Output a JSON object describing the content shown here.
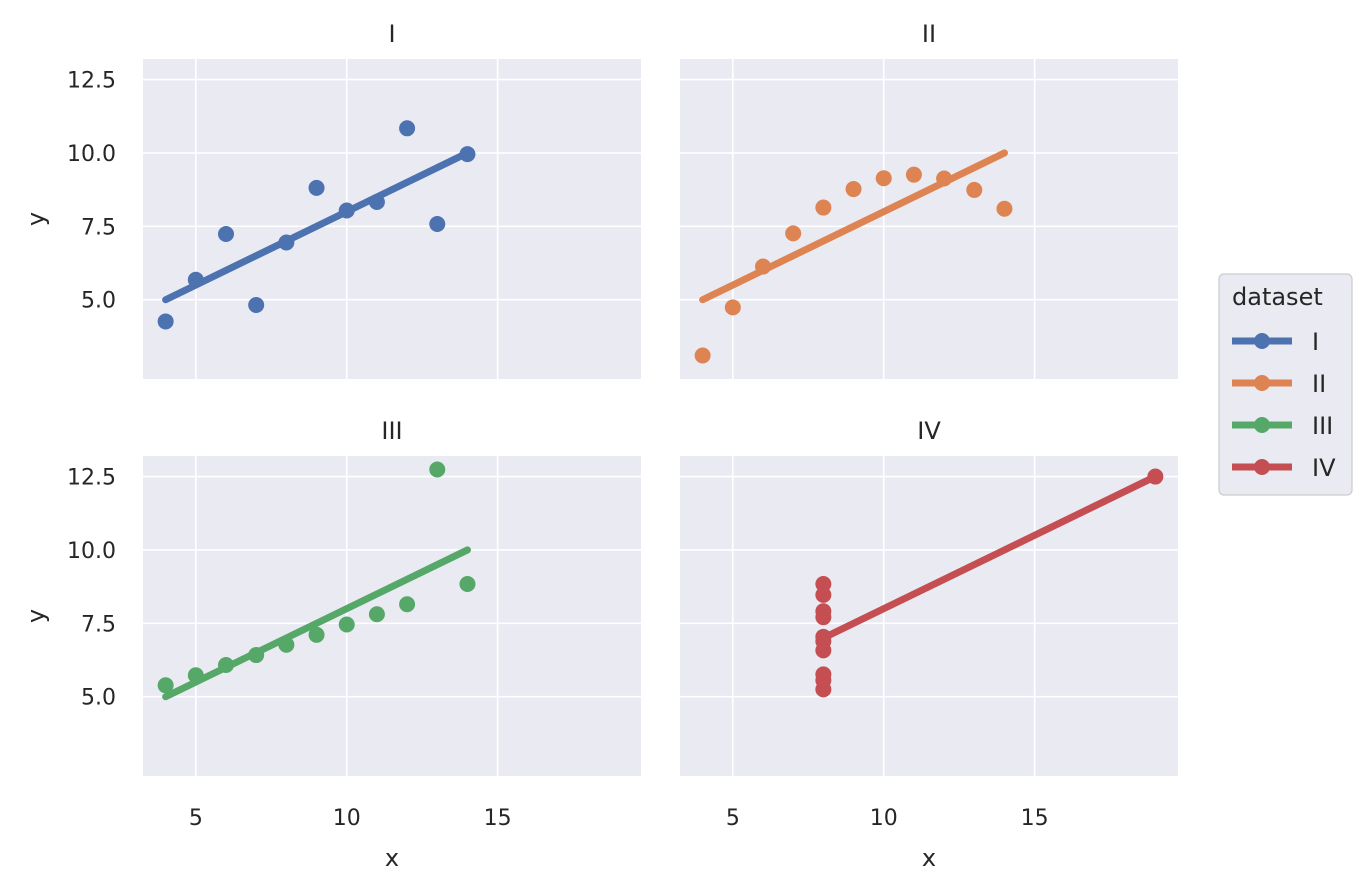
{
  "chart_data": {
    "type": "scatter",
    "layout": "facet-grid-2x2",
    "xlabel": "x",
    "ylabel": "y",
    "xlim": [
      3.25,
      19.75
    ],
    "ylim": [
      2.3,
      13.2
    ],
    "x_ticks": [
      5,
      10,
      15
    ],
    "y_ticks": [
      5.0,
      7.5,
      10.0,
      12.5
    ],
    "x_tick_labels": [
      "5",
      "10",
      "15"
    ],
    "y_tick_labels": [
      "5.0",
      "7.5",
      "10.0",
      "12.5"
    ],
    "grid": true,
    "legend": {
      "title": "dataset",
      "placement": "right",
      "entries": [
        "I",
        "II",
        "III",
        "IV"
      ]
    },
    "panels": [
      {
        "title": "I",
        "color": "#4c72b0",
        "points": [
          [
            10,
            8.04
          ],
          [
            8,
            6.95
          ],
          [
            13,
            7.58
          ],
          [
            9,
            8.81
          ],
          [
            11,
            8.33
          ],
          [
            14,
            9.96
          ],
          [
            6,
            7.24
          ],
          [
            4,
            4.26
          ],
          [
            12,
            10.84
          ],
          [
            7,
            4.82
          ],
          [
            5,
            5.68
          ]
        ],
        "fit": [
          [
            4,
            5.0
          ],
          [
            14,
            10.0
          ]
        ]
      },
      {
        "title": "II",
        "color": "#dd8452",
        "points": [
          [
            10,
            9.14
          ],
          [
            8,
            8.14
          ],
          [
            13,
            8.74
          ],
          [
            9,
            8.77
          ],
          [
            11,
            9.26
          ],
          [
            14,
            8.1
          ],
          [
            6,
            6.13
          ],
          [
            4,
            3.1
          ],
          [
            12,
            9.13
          ],
          [
            7,
            7.26
          ],
          [
            5,
            4.74
          ]
        ],
        "fit": [
          [
            4,
            5.0
          ],
          [
            14,
            10.0
          ]
        ]
      },
      {
        "title": "III",
        "color": "#55a868",
        "points": [
          [
            10,
            7.46
          ],
          [
            8,
            6.77
          ],
          [
            13,
            12.74
          ],
          [
            9,
            7.11
          ],
          [
            11,
            7.81
          ],
          [
            14,
            8.84
          ],
          [
            6,
            6.08
          ],
          [
            4,
            5.39
          ],
          [
            12,
            8.15
          ],
          [
            7,
            6.42
          ],
          [
            5,
            5.73
          ]
        ],
        "fit": [
          [
            4,
            5.0
          ],
          [
            14,
            10.0
          ]
        ]
      },
      {
        "title": "IV",
        "color": "#c44e52",
        "points": [
          [
            8,
            6.58
          ],
          [
            8,
            5.76
          ],
          [
            8,
            7.71
          ],
          [
            8,
            8.84
          ],
          [
            8,
            8.47
          ],
          [
            8,
            7.04
          ],
          [
            8,
            5.25
          ],
          [
            19,
            12.5
          ],
          [
            8,
            5.56
          ],
          [
            8,
            7.91
          ],
          [
            8,
            6.89
          ]
        ],
        "fit": [
          [
            8,
            7.0
          ],
          [
            19,
            12.5
          ]
        ]
      }
    ]
  }
}
